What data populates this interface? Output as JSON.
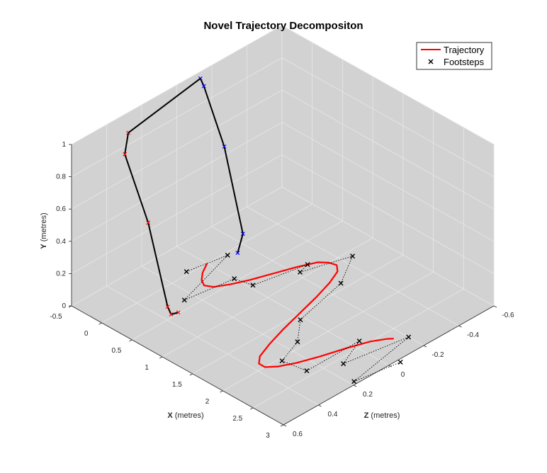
{
  "chart_data": {
    "type": "line3d",
    "title": "Novel Trajectory Decompositon",
    "xlabel": {
      "bold": "X",
      "rest": " (metres)"
    },
    "ylabel": {
      "bold": "Y",
      "rest": " (metres)"
    },
    "zlabel": {
      "bold": "Z",
      "rest": " (metres)"
    },
    "xlim": [
      -0.5,
      3
    ],
    "ylim": [
      0,
      1
    ],
    "zlim": [
      -0.6,
      0.6
    ],
    "xticks": [
      "-0.5",
      "0",
      "0.5",
      "1",
      "1.5",
      "2",
      "2.5",
      "3"
    ],
    "yticks": [
      "0",
      "0.2",
      "0.4",
      "0.6",
      "0.8",
      "1"
    ],
    "zticks": [
      "-0.6",
      "-0.4",
      "-0.2",
      "0",
      "0.2",
      "0.4",
      "0.6"
    ],
    "grid": true,
    "legend": {
      "position": "top-right",
      "entries": [
        "Trajectory",
        "Footsteps"
      ]
    },
    "colors": {
      "trajectory": "#ff0000",
      "footsteps": "#000000",
      "left_leg": "#ff0000",
      "right_leg": "#0000ff",
      "pane": "#d2d2d2",
      "grid": "#e8e8e8"
    },
    "series": [
      {
        "name": "Trajectory",
        "style": "red-line",
        "points": [
          [
            0,
            0,
            0
          ],
          [
            0.1,
            0,
            0.06
          ],
          [
            0.2,
            0,
            0.1
          ],
          [
            0.3,
            0,
            0.12
          ],
          [
            0.4,
            0,
            0.1
          ],
          [
            0.5,
            0,
            0.04
          ],
          [
            0.6,
            0,
            -0.04
          ],
          [
            0.7,
            0,
            -0.14
          ],
          [
            0.8,
            0,
            -0.24
          ],
          [
            0.9,
            0,
            -0.32
          ],
          [
            1.0,
            0,
            -0.35
          ],
          [
            1.1,
            0,
            -0.36
          ],
          [
            1.2,
            0,
            -0.33
          ],
          [
            1.3,
            0,
            -0.25
          ],
          [
            1.4,
            0,
            -0.14
          ],
          [
            1.5,
            0,
            -0.01
          ],
          [
            1.6,
            0,
            0.12
          ],
          [
            1.7,
            0,
            0.23
          ],
          [
            1.8,
            0,
            0.32
          ],
          [
            1.9,
            0,
            0.36
          ],
          [
            2.0,
            0,
            0.36
          ],
          [
            2.1,
            0,
            0.32
          ],
          [
            2.2,
            0,
            0.25
          ],
          [
            2.3,
            0,
            0.15
          ],
          [
            2.4,
            0,
            0.03
          ],
          [
            2.5,
            0,
            -0.07
          ],
          [
            2.6,
            0,
            -0.13
          ],
          [
            2.65,
            0,
            -0.15
          ]
        ]
      },
      {
        "name": "Footsteps",
        "style": "black-x",
        "points": [
          [
            -0.05,
            0,
            0.1
          ],
          [
            0.05,
            0,
            -0.1
          ],
          [
            0.35,
            0,
            0.25
          ],
          [
            0.45,
            0,
            0.0
          ],
          [
            0.7,
            0,
            -0.02
          ],
          [
            0.85,
            0,
            -0.28
          ],
          [
            0.9,
            0,
            -0.22
          ],
          [
            1.1,
            0,
            -0.45
          ],
          [
            1.4,
            0,
            -0.28
          ],
          [
            1.6,
            0,
            0.02
          ],
          [
            1.9,
            0,
            0.14
          ],
          [
            2.05,
            0,
            0.28
          ],
          [
            2.4,
            0,
            0.26
          ],
          [
            2.4,
            0,
            -0.04
          ],
          [
            2.6,
            0,
            0.12
          ],
          [
            2.75,
            0,
            -0.2
          ],
          [
            2.95,
            0,
            0.18
          ],
          [
            3.05,
            0,
            -0.05
          ]
        ]
      }
    ],
    "skeleton": [
      {
        "side": "left",
        "color": "red",
        "points": [
          [
            -0.2,
            1.0,
            0.38
          ],
          [
            -0.2,
            0.88,
            0.4
          ],
          [
            0.1,
            0.5,
            0.37
          ],
          [
            0.45,
            0.06,
            0.38
          ],
          [
            0.45,
            0.0,
            0.36
          ],
          [
            0.48,
            0.0,
            0.33
          ]
        ]
      },
      {
        "side": "right",
        "color": "blue",
        "points": [
          [
            -0.4,
            1.0,
            -0.1
          ],
          [
            -0.4,
            0.94,
            -0.12
          ],
          [
            -0.15,
            0.6,
            -0.15
          ],
          [
            0.1,
            0.1,
            -0.17
          ],
          [
            0.1,
            0.0,
            -0.14
          ]
        ]
      },
      {
        "side": "hip",
        "color": "black",
        "points": [
          [
            -0.2,
            1.0,
            0.38
          ],
          [
            -0.4,
            1.0,
            -0.1
          ]
        ]
      }
    ]
  }
}
